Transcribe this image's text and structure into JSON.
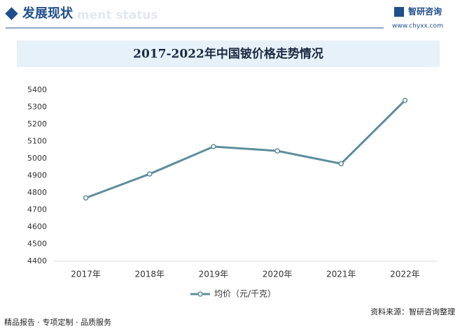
{
  "header": {
    "title": "发展现状",
    "subtitle": "ment status",
    "brand": "智研咨询",
    "website": "www.chyxx.com"
  },
  "chart_data": {
    "type": "line",
    "title": "2017-2022年中国铍价格走势情况",
    "categories": [
      "2017年",
      "2018年",
      "2019年",
      "2020年",
      "2021年",
      "2022年"
    ],
    "series": [
      {
        "name": "均价（元/千克）",
        "color": "#5e8d9c",
        "values": [
          4770,
          4910,
          5070,
          5045,
          4970,
          5340
        ]
      }
    ],
    "ylim": [
      4400,
      5400
    ],
    "yticks": [
      4400,
      4500,
      4600,
      4700,
      4800,
      4900,
      5000,
      5100,
      5200,
      5300,
      5400
    ],
    "grid": false,
    "legend": "bottom"
  },
  "footer": {
    "slogan": "精品报告 · 专项定制 · 品质服务",
    "source": "资料来源：智研咨询整理"
  }
}
